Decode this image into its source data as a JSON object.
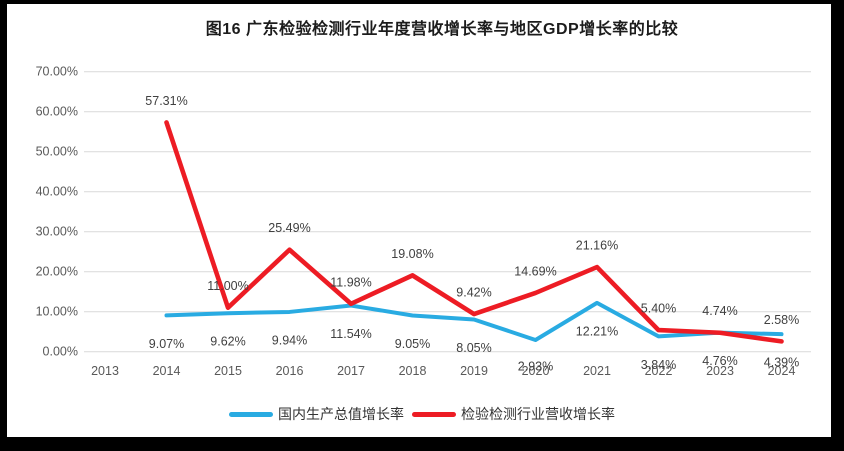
{
  "title": "图16 广东检验检测行业年度营收增长率与地区GDP增长率的比较",
  "chart_data": {
    "type": "line",
    "categories": [
      "2013",
      "2014",
      "2015",
      "2016",
      "2017",
      "2018",
      "2019",
      "2020",
      "2021",
      "2022",
      "2023",
      "2024"
    ],
    "series": [
      {
        "name": "国内生产总值增长率",
        "color": "#29ABE2",
        "values": [
          null,
          9.07,
          9.62,
          9.94,
          11.54,
          9.05,
          8.05,
          2.93,
          12.21,
          3.84,
          4.76,
          4.39
        ],
        "labels": [
          null,
          "9.07%",
          "9.62%",
          "9.94%",
          "11.54%",
          "9.05%",
          "8.05%",
          "2.93%",
          "12.21%",
          "3.84%",
          "4.76%",
          "4.39%"
        ],
        "label_position": "below"
      },
      {
        "name": "检验检测行业营收增长率",
        "color": "#ED1C24",
        "values": [
          null,
          57.31,
          11.0,
          25.49,
          11.98,
          19.08,
          9.42,
          14.69,
          21.16,
          5.4,
          4.74,
          2.58
        ],
        "labels": [
          null,
          "57.31%",
          "11.00%",
          "25.49%",
          "11.98%",
          "19.08%",
          "9.42%",
          "14.69%",
          "21.16%",
          "5.40%",
          "4.74%",
          "2.58%"
        ],
        "label_position": "above"
      }
    ],
    "y_ticks": [
      "70.00%",
      "60.00%",
      "50.00%",
      "40.00%",
      "30.00%",
      "20.00%",
      "10.00%",
      "0.00%"
    ],
    "ylim": [
      0,
      70
    ],
    "grid": "horizontal",
    "legend_position": "bottom",
    "colors": {
      "grid": "#D9D9D9",
      "tick_text": "#595959",
      "label_text": "#404040"
    }
  }
}
